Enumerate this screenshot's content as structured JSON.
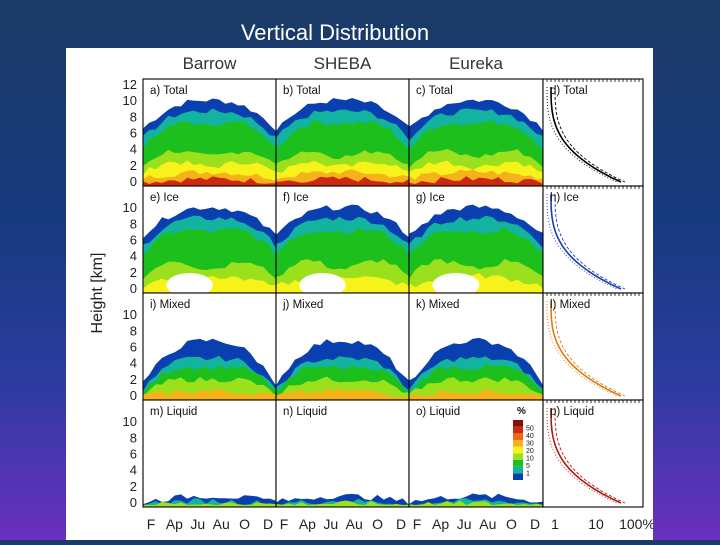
{
  "slide": {
    "title": "Vertical Distribution"
  },
  "chart_data": {
    "type": "heatmap",
    "columns": [
      "Barrow",
      "SHEBA",
      "Eureka",
      ""
    ],
    "rows": [
      "Total",
      "Ice",
      "Mixed",
      "Liquid"
    ],
    "panel_labels": [
      [
        "a) Total",
        "b) Total",
        "c) Total",
        "d) Total"
      ],
      [
        "e) Ice",
        "f) Ice",
        "g) Ice",
        "h) Ice"
      ],
      [
        "i) Mixed",
        "j) Mixed",
        "k) Mixed",
        "l) Mixed"
      ],
      [
        "m) Liquid",
        "n) Liquid",
        "o) Liquid",
        "p) Liquid"
      ]
    ],
    "ylabel": "Height [km]",
    "y_ticks": [
      "0",
      "2",
      "4",
      "6",
      "8",
      "10",
      "12"
    ],
    "ylim": [
      0,
      12
    ],
    "x_ticks_month": [
      "F",
      "Ap",
      "Ju",
      "Au",
      "O",
      "D"
    ],
    "x_ticks_profile": [
      "1",
      "10",
      "100%"
    ],
    "colorbar": {
      "title": "%",
      "levels": [
        "1",
        "5",
        "10",
        "20",
        "30",
        "40",
        "50"
      ],
      "colors": [
        "#0a3fb0",
        "#12b4a0",
        "#1dbf1d",
        "#9be01c",
        "#f7f21a",
        "#f5b21b",
        "#ec6a12",
        "#cc2a10",
        "#8a0d05"
      ]
    },
    "profile_colors": [
      "#000000",
      "#1a3fb0",
      "#e07a10",
      "#b01a10"
    ]
  }
}
